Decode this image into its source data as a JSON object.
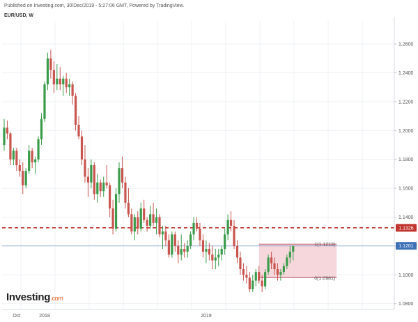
{
  "header": {
    "published": "Published on Investing.com, 30/Dec/2019 - 5:27:06 GMT, Powered by TradingView.",
    "symbol": "EUR/USD, W"
  },
  "logo": {
    "main": "Investing",
    "suffix": ".com"
  },
  "colors": {
    "up": "#3a9c4a",
    "down": "#c8554e",
    "dashed_level": "#c0342d",
    "current_price": "#3d6fb7",
    "fib_zone": "#f3d0d6"
  },
  "chart_data": {
    "type": "candlestick",
    "title": "EUR/USD, W",
    "ylim": [
      1.076,
      1.276
    ],
    "y_ticks": [
      1.08,
      1.1,
      1.12,
      1.14,
      1.16,
      1.18,
      1.2,
      1.22,
      1.24,
      1.26
    ],
    "y_tick_labels": [
      "1.0800",
      "1.1000",
      "1.1200",
      "1.1400",
      "1.1600",
      "1.1800",
      "1.2000",
      "1.2200",
      "1.2400",
      "1.2600"
    ],
    "x_labels": [
      {
        "label": "Oct",
        "index": 4
      },
      {
        "label": "2018",
        "index": 13
      },
      {
        "label": "2019",
        "index": 65
      }
    ],
    "grid": true,
    "candles": [
      [
        1.19,
        1.208,
        1.186,
        1.202
      ],
      [
        1.202,
        1.207,
        1.194,
        1.198
      ],
      [
        1.198,
        1.199,
        1.176,
        1.18
      ],
      [
        1.18,
        1.188,
        1.176,
        1.186
      ],
      [
        1.186,
        1.188,
        1.172,
        1.176
      ],
      [
        1.176,
        1.18,
        1.168,
        1.172
      ],
      [
        1.172,
        1.178,
        1.156,
        1.162
      ],
      [
        1.162,
        1.174,
        1.16,
        1.172
      ],
      [
        1.172,
        1.19,
        1.17,
        1.186
      ],
      [
        1.186,
        1.188,
        1.174,
        1.178
      ],
      [
        1.178,
        1.182,
        1.17,
        1.18
      ],
      [
        1.18,
        1.196,
        1.178,
        1.194
      ],
      [
        1.194,
        1.212,
        1.19,
        1.208
      ],
      [
        1.208,
        1.234,
        1.206,
        1.232
      ],
      [
        1.232,
        1.254,
        1.228,
        1.25
      ],
      [
        1.25,
        1.256,
        1.236,
        1.242
      ],
      [
        1.242,
        1.248,
        1.226,
        1.232
      ],
      [
        1.232,
        1.246,
        1.228,
        1.236
      ],
      [
        1.236,
        1.244,
        1.228,
        1.232
      ],
      [
        1.232,
        1.238,
        1.224,
        1.236
      ],
      [
        1.236,
        1.24,
        1.226,
        1.23
      ],
      [
        1.23,
        1.236,
        1.224,
        1.232
      ],
      [
        1.232,
        1.234,
        1.218,
        1.224
      ],
      [
        1.224,
        1.226,
        1.2,
        1.204
      ],
      [
        1.204,
        1.21,
        1.194,
        1.196
      ],
      [
        1.196,
        1.2,
        1.176,
        1.18
      ],
      [
        1.18,
        1.19,
        1.164,
        1.168
      ],
      [
        1.168,
        1.174,
        1.154,
        1.164
      ],
      [
        1.164,
        1.18,
        1.16,
        1.176
      ],
      [
        1.176,
        1.178,
        1.152,
        1.156
      ],
      [
        1.156,
        1.17,
        1.15,
        1.164
      ],
      [
        1.164,
        1.166,
        1.154,
        1.158
      ],
      [
        1.158,
        1.168,
        1.154,
        1.164
      ],
      [
        1.164,
        1.176,
        1.16,
        1.162
      ],
      [
        1.162,
        1.164,
        1.14,
        1.146
      ],
      [
        1.146,
        1.152,
        1.128,
        1.132
      ],
      [
        1.132,
        1.16,
        1.13,
        1.156
      ],
      [
        1.156,
        1.178,
        1.15,
        1.174
      ],
      [
        1.174,
        1.182,
        1.16,
        1.164
      ],
      [
        1.164,
        1.168,
        1.146,
        1.15
      ],
      [
        1.15,
        1.16,
        1.14,
        1.142
      ],
      [
        1.142,
        1.146,
        1.128,
        1.13
      ],
      [
        1.13,
        1.142,
        1.124,
        1.14
      ],
      [
        1.14,
        1.144,
        1.128,
        1.132
      ],
      [
        1.132,
        1.15,
        1.13,
        1.146
      ],
      [
        1.146,
        1.152,
        1.136,
        1.138
      ],
      [
        1.138,
        1.14,
        1.13,
        1.134
      ],
      [
        1.134,
        1.148,
        1.132,
        1.142
      ],
      [
        1.142,
        1.15,
        1.134,
        1.136
      ],
      [
        1.136,
        1.146,
        1.128,
        1.14
      ],
      [
        1.14,
        1.142,
        1.126,
        1.128
      ],
      [
        1.128,
        1.134,
        1.118,
        1.13
      ],
      [
        1.13,
        1.134,
        1.12,
        1.124
      ],
      [
        1.124,
        1.128,
        1.112,
        1.114
      ],
      [
        1.114,
        1.13,
        1.112,
        1.128
      ],
      [
        1.128,
        1.13,
        1.116,
        1.12
      ],
      [
        1.12,
        1.124,
        1.108,
        1.114
      ],
      [
        1.114,
        1.128,
        1.11,
        1.118
      ],
      [
        1.118,
        1.122,
        1.112,
        1.116
      ],
      [
        1.116,
        1.124,
        1.112,
        1.12
      ],
      [
        1.12,
        1.13,
        1.118,
        1.128
      ],
      [
        1.128,
        1.14,
        1.124,
        1.136
      ],
      [
        1.136,
        1.14,
        1.13,
        1.132
      ],
      [
        1.132,
        1.136,
        1.12,
        1.124
      ],
      [
        1.124,
        1.128,
        1.112,
        1.116
      ],
      [
        1.116,
        1.124,
        1.108,
        1.118
      ],
      [
        1.118,
        1.122,
        1.11,
        1.114
      ],
      [
        1.114,
        1.12,
        1.104,
        1.11
      ],
      [
        1.11,
        1.118,
        1.104,
        1.112
      ],
      [
        1.112,
        1.118,
        1.106,
        1.114
      ],
      [
        1.114,
        1.12,
        1.11,
        1.118
      ],
      [
        1.118,
        1.132,
        1.114,
        1.128
      ],
      [
        1.128,
        1.142,
        1.124,
        1.138
      ],
      [
        1.138,
        1.144,
        1.13,
        1.134
      ],
      [
        1.134,
        1.138,
        1.118,
        1.12
      ],
      [
        1.12,
        1.124,
        1.108,
        1.112
      ],
      [
        1.112,
        1.116,
        1.1,
        1.104
      ],
      [
        1.104,
        1.108,
        1.096,
        1.1
      ],
      [
        1.1,
        1.106,
        1.094,
        1.098
      ],
      [
        1.098,
        1.102,
        1.088,
        1.09
      ],
      [
        1.09,
        1.1,
        1.088,
        1.096
      ],
      [
        1.096,
        1.104,
        1.092,
        1.102
      ],
      [
        1.102,
        1.106,
        1.094,
        1.096
      ],
      [
        1.096,
        1.1,
        1.088,
        1.092
      ],
      [
        1.092,
        1.104,
        1.09,
        1.102
      ],
      [
        1.102,
        1.114,
        1.1,
        1.112
      ],
      [
        1.112,
        1.116,
        1.104,
        1.108
      ],
      [
        1.108,
        1.112,
        1.1,
        1.104
      ],
      [
        1.104,
        1.108,
        1.096,
        1.1
      ],
      [
        1.1,
        1.104,
        1.096,
        1.102
      ],
      [
        1.102,
        1.108,
        1.1,
        1.106
      ],
      [
        1.106,
        1.114,
        1.104,
        1.112
      ],
      [
        1.112,
        1.12,
        1.108,
        1.116
      ],
      [
        1.116,
        1.12,
        1.11,
        1.12
      ]
    ],
    "annotations": {
      "dashed_level": {
        "value": 1.1326,
        "label": "1.1326"
      },
      "current_price": {
        "value": 1.1201,
        "label": "1.1201"
      },
      "fib_zone": {
        "top": 1.1213,
        "bottom": 1.0981,
        "start_index": 82,
        "end_index": 107,
        "top_label": "1(1.1213)",
        "bottom_label": "0(1.0981)"
      }
    }
  }
}
